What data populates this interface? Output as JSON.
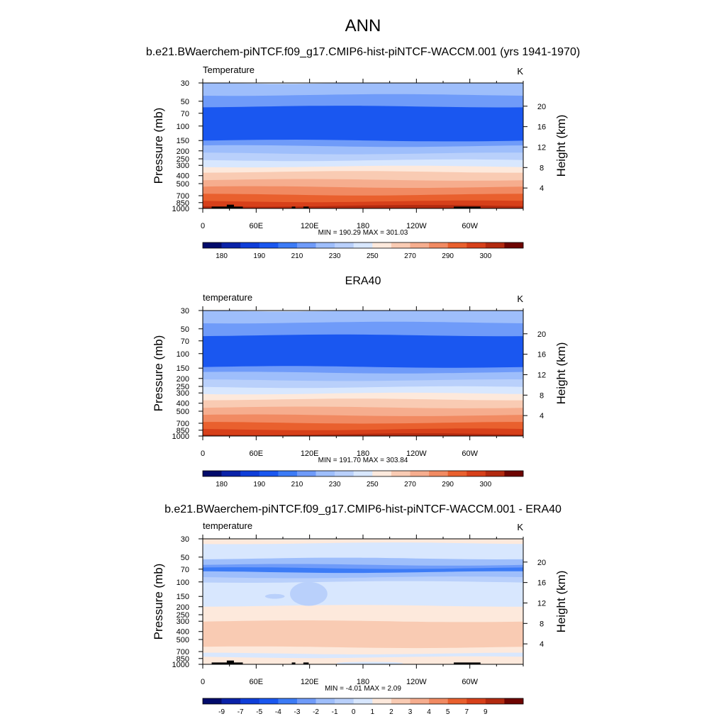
{
  "figure": {
    "title": "ANN",
    "panel_titles": [
      "b.e21.BWaerchem-piNTCF.f09_g17.CMIP6-hist-piNTCF-WACCM.001 (yrs 1941-1970)",
      "ERA40",
      "b.e21.BWaerchem-piNTCF.f09_g17.CMIP6-hist-piNTCF-WACCM.001 - ERA40"
    ]
  },
  "chart_data": [
    {
      "type": "heatmap",
      "title": "b.e21.BWaerchem-piNTCF.f09_g17.CMIP6-hist-piNTCF-WACCM.001 (yrs 1941-1970)",
      "left_label": "Temperature",
      "units": "K",
      "xlabel": "",
      "ylabel": "Pressure (mb)",
      "ylabel_right": "Height (km)",
      "x_ticks": [
        "0",
        "60E",
        "120E",
        "180",
        "120W",
        "60W"
      ],
      "y_ticks": [
        "30",
        "50",
        "70",
        "100",
        "150",
        "200",
        "250",
        "300",
        "400",
        "500",
        "700",
        "850",
        "1000"
      ],
      "y_right_ticks": [
        "20",
        "16",
        "12",
        "8",
        "4"
      ],
      "stats": "MIN = 190.29  MAX = 301.03",
      "colorbar_labels": [
        "180",
        "190",
        "210",
        "230",
        "250",
        "270",
        "290",
        "300"
      ],
      "bands": [
        {
          "p_top": 30,
          "p_bot": 42,
          "color": "#9ebefb"
        },
        {
          "p_top": 42,
          "p_bot": 58,
          "color": "#6f9bf9"
        },
        {
          "p_top": 58,
          "p_bot": 150,
          "color": "#1a57f0"
        },
        {
          "p_top": 150,
          "p_bot": 175,
          "color": "#6f9bf9"
        },
        {
          "p_top": 175,
          "p_bot": 215,
          "color": "#9ebefb"
        },
        {
          "p_top": 215,
          "p_bot": 260,
          "color": "#b9d0fb"
        },
        {
          "p_top": 260,
          "p_bot": 310,
          "color": "#d8e7fe"
        },
        {
          "p_top": 310,
          "p_bot": 360,
          "color": "#fde9dc"
        },
        {
          "p_top": 360,
          "p_bot": 450,
          "color": "#f9cbb3"
        },
        {
          "p_top": 450,
          "p_bot": 550,
          "color": "#f6ad8e"
        },
        {
          "p_top": 550,
          "p_bot": 680,
          "color": "#f18a62"
        },
        {
          "p_top": 680,
          "p_bot": 820,
          "color": "#e9602e"
        },
        {
          "p_top": 820,
          "p_bot": 930,
          "color": "#d7401a"
        },
        {
          "p_top": 930,
          "p_bot": 1000,
          "color": "#b22a10"
        }
      ],
      "blobs": [],
      "terrain": [
        {
          "lon0": 10,
          "lon1": 45,
          "p": 950
        },
        {
          "lon0": 27,
          "lon1": 35,
          "p": 900
        },
        {
          "lon0": 100,
          "lon1": 104,
          "p": 950
        },
        {
          "lon0": 113,
          "lon1": 119,
          "p": 950
        },
        {
          "lon0": 282,
          "lon1": 312,
          "p": 950
        }
      ]
    },
    {
      "type": "heatmap",
      "title": "ERA40",
      "left_label": "temperature",
      "units": "K",
      "xlabel": "",
      "ylabel": "Pressure (mb)",
      "ylabel_right": "Height (km)",
      "x_ticks": [
        "0",
        "60E",
        "120E",
        "180",
        "120W",
        "60W"
      ],
      "y_ticks": [
        "30",
        "50",
        "70",
        "100",
        "150",
        "200",
        "250",
        "300",
        "400",
        "500",
        "700",
        "850",
        "1000"
      ],
      "y_right_ticks": [
        "20",
        "16",
        "12",
        "8",
        "4"
      ],
      "stats": "MIN = 191.70  MAX = 303.84",
      "colorbar_labels": [
        "180",
        "190",
        "210",
        "230",
        "250",
        "270",
        "290",
        "300"
      ],
      "bands": [
        {
          "p_top": 30,
          "p_bot": 42,
          "color": "#9ebefb"
        },
        {
          "p_top": 42,
          "p_bot": 60,
          "color": "#6f9bf9"
        },
        {
          "p_top": 60,
          "p_bot": 145,
          "color": "#1a57f0"
        },
        {
          "p_top": 145,
          "p_bot": 170,
          "color": "#6f9bf9"
        },
        {
          "p_top": 170,
          "p_bot": 210,
          "color": "#9ebefb"
        },
        {
          "p_top": 210,
          "p_bot": 255,
          "color": "#b9d0fb"
        },
        {
          "p_top": 255,
          "p_bot": 305,
          "color": "#d8e7fe"
        },
        {
          "p_top": 305,
          "p_bot": 360,
          "color": "#fde9dc"
        },
        {
          "p_top": 360,
          "p_bot": 450,
          "color": "#f9cbb3"
        },
        {
          "p_top": 450,
          "p_bot": 560,
          "color": "#f6ad8e"
        },
        {
          "p_top": 560,
          "p_bot": 690,
          "color": "#f18a62"
        },
        {
          "p_top": 690,
          "p_bot": 830,
          "color": "#e9602e"
        },
        {
          "p_top": 830,
          "p_bot": 950,
          "color": "#d7401a"
        },
        {
          "p_top": 950,
          "p_bot": 1000,
          "color": "#b22a10"
        }
      ],
      "blobs": [],
      "terrain": []
    },
    {
      "type": "heatmap",
      "title": "b.e21.BWaerchem-piNTCF.f09_g17.CMIP6-hist-piNTCF-WACCM.001 - ERA40",
      "left_label": "temperature",
      "units": "K",
      "xlabel": "",
      "ylabel": "Pressure (mb)",
      "ylabel_right": "Height (km)",
      "x_ticks": [
        "0",
        "60E",
        "120E",
        "180",
        "120W",
        "60W"
      ],
      "y_ticks": [
        "30",
        "50",
        "70",
        "100",
        "150",
        "200",
        "250",
        "300",
        "400",
        "500",
        "700",
        "850",
        "1000"
      ],
      "y_right_ticks": [
        "20",
        "16",
        "12",
        "8",
        "4"
      ],
      "stats": "MIN =  -4.01  MAX =   2.09",
      "colorbar_labels": [
        "-9",
        "-7",
        "-5",
        "-4",
        "-3",
        "-2",
        "-1",
        "0",
        "1",
        "2",
        "3",
        "4",
        "5",
        "7",
        "9"
      ],
      "bands": [
        {
          "p_top": 30,
          "p_bot": 34,
          "color": "#fde9dc"
        },
        {
          "p_top": 34,
          "p_bot": 52,
          "color": "#d8e7fe"
        },
        {
          "p_top": 52,
          "p_bot": 62,
          "color": "#9ebefb"
        },
        {
          "p_top": 62,
          "p_bot": 68,
          "color": "#6f9bf9"
        },
        {
          "p_top": 68,
          "p_bot": 76,
          "color": "#3c7bf6"
        },
        {
          "p_top": 76,
          "p_bot": 88,
          "color": "#9ebefb"
        },
        {
          "p_top": 88,
          "p_bot": 100,
          "color": "#b9d0fb"
        },
        {
          "p_top": 100,
          "p_bot": 195,
          "color": "#d8e7fe"
        },
        {
          "p_top": 195,
          "p_bot": 300,
          "color": "#fde9dc"
        },
        {
          "p_top": 300,
          "p_bot": 620,
          "color": "#f9cbb3"
        },
        {
          "p_top": 620,
          "p_bot": 740,
          "color": "#fde9dc"
        },
        {
          "p_top": 740,
          "p_bot": 820,
          "color": "#d8e7fe"
        },
        {
          "p_top": 820,
          "p_bot": 1000,
          "color": "#fde9dc"
        }
      ],
      "blobs": [
        {
          "lon0": 98,
          "lon1": 140,
          "p_top": 100,
          "p_bot": 195,
          "color": "#b9d0fb"
        },
        {
          "lon0": 70,
          "lon1": 92,
          "p_top": 140,
          "p_bot": 160,
          "color": "#b9d0fb"
        },
        {
          "lon0": 150,
          "lon1": 225,
          "p_top": 940,
          "p_bot": 1000,
          "color": "#d8e7fe"
        }
      ],
      "terrain": [
        {
          "lon0": 10,
          "lon1": 45,
          "p": 950
        },
        {
          "lon0": 27,
          "lon1": 35,
          "p": 900
        },
        {
          "lon0": 100,
          "lon1": 104,
          "p": 950
        },
        {
          "lon0": 113,
          "lon1": 119,
          "p": 950
        },
        {
          "lon0": 282,
          "lon1": 312,
          "p": 950
        }
      ]
    }
  ],
  "colors": {
    "temperature_colorbar": [
      "#020b6b",
      "#0a22a8",
      "#0f3ed9",
      "#1a57f0",
      "#3c7bf6",
      "#6f9bf9",
      "#9ebefb",
      "#b9d0fb",
      "#d8e7fe",
      "#fde9dc",
      "#f9cbb3",
      "#f6ad8e",
      "#f18a62",
      "#e9602e",
      "#d7401a",
      "#b22a10",
      "#6e0502"
    ],
    "difference_colorbar": [
      "#020b6b",
      "#0a22a8",
      "#0f3ed9",
      "#1a57f0",
      "#3c7bf6",
      "#6f9bf9",
      "#9ebefb",
      "#b9d0fb",
      "#d8e7fe",
      "#fde9dc",
      "#f9cbb3",
      "#f6ad8e",
      "#f18a62",
      "#e9602e",
      "#d7401a",
      "#b22a10",
      "#6e0502"
    ],
    "terrain": "#000000"
  }
}
